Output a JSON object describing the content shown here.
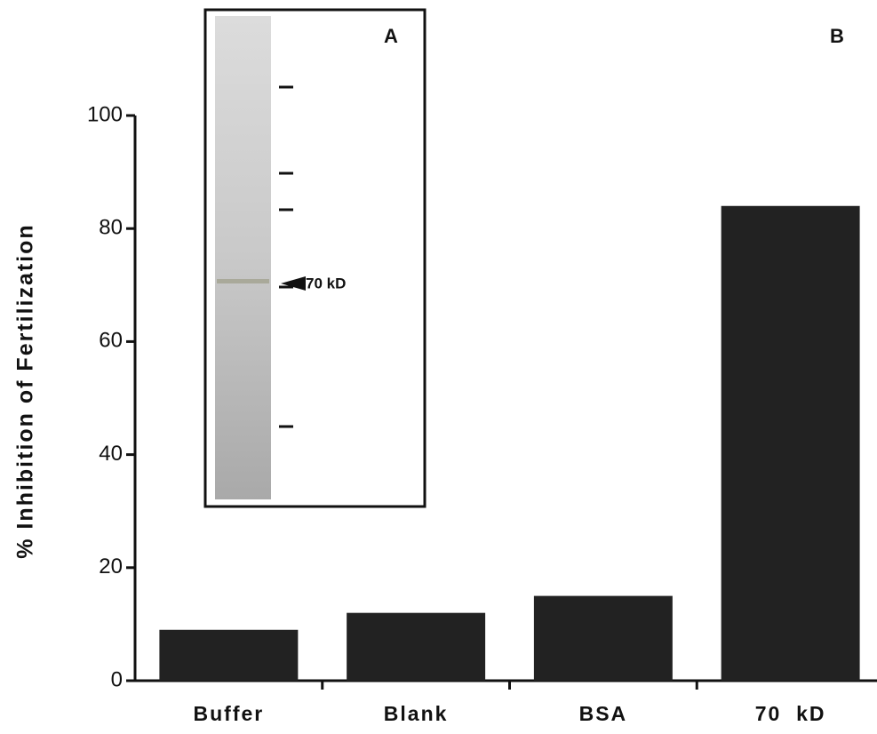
{
  "chart_data": {
    "type": "bar",
    "ylabel": "% Inhibition of Fertilization",
    "categories": [
      "Buffer",
      "Blank",
      "BSA",
      "70  kD"
    ],
    "values": [
      9,
      12,
      15,
      84
    ],
    "color": "#222222",
    "ylim": [
      0,
      100
    ],
    "yticks": [
      0,
      20,
      40,
      60,
      80,
      100
    ],
    "grid": false,
    "annotations": [
      "A",
      "B",
      "70 kD"
    ]
  }
}
